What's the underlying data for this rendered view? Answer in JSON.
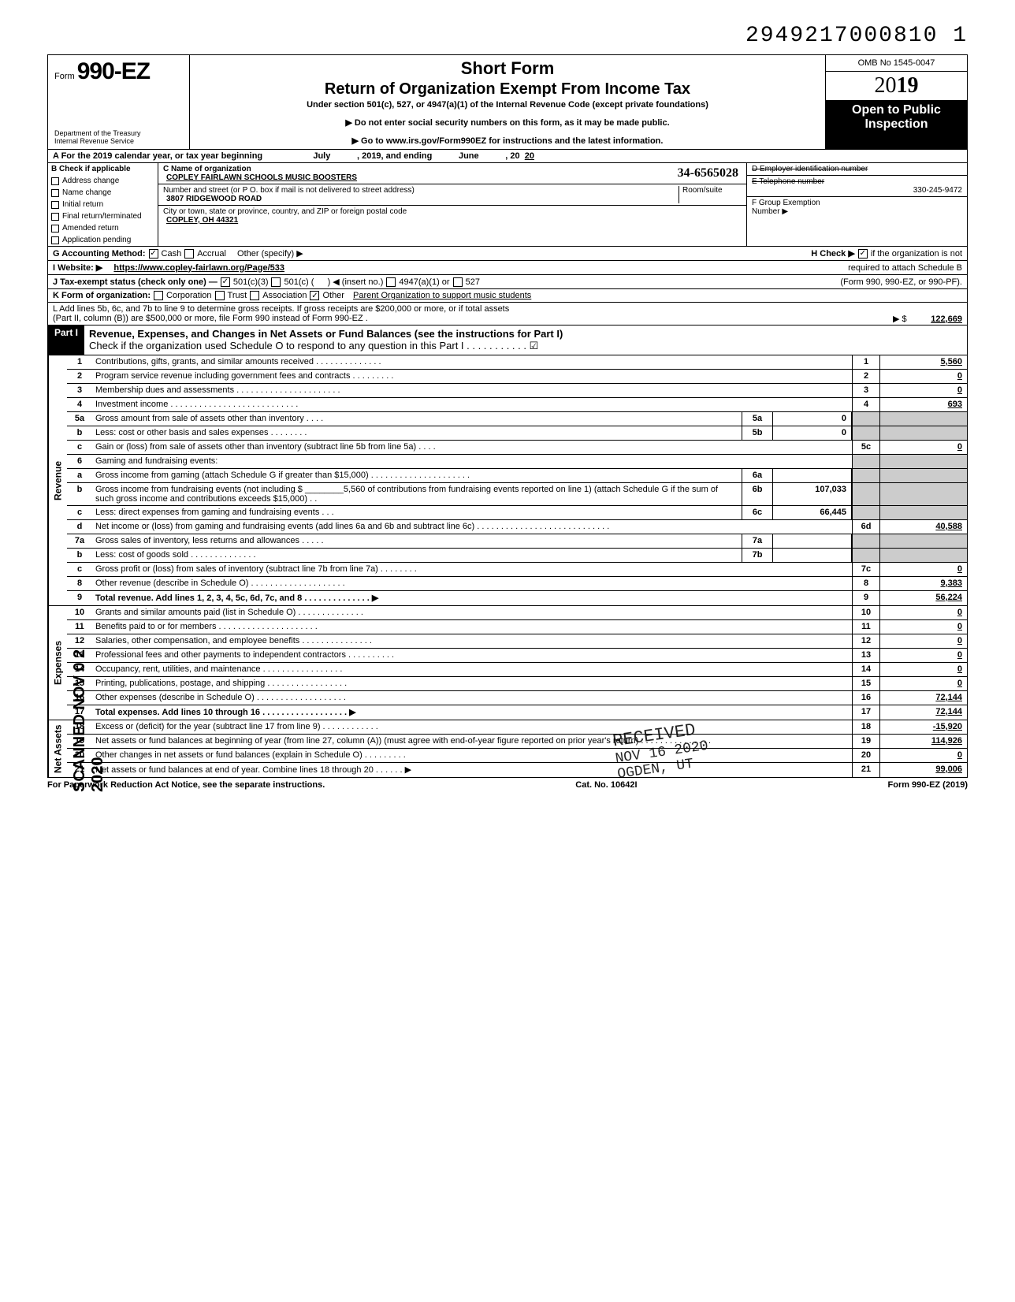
{
  "dln": "2949217000810 1",
  "header": {
    "form_label": "Form",
    "form_number": "990-EZ",
    "dept": "Department of the Treasury\nInternal Revenue Service",
    "short": "Short Form",
    "title": "Return of Organization Exempt From Income Tax",
    "subtitle": "Under section 501(c), 527, or 4947(a)(1) of the Internal Revenue Code (except private foundations)",
    "inst1": "▶ Do not enter social security numbers on this form, as it may be made public.",
    "inst2": "▶ Go to www.irs.gov/Form990EZ for instructions and the latest information.",
    "omb": "OMB No 1545-0047",
    "year_prefix": "20",
    "year_bold": "19",
    "open1": "Open to Public",
    "open2": "Inspection"
  },
  "lineA": {
    "prefix": "A For the 2019 calendar year, or tax year beginning",
    "begin": "July",
    "mid": ", 2019, and ending",
    "end": "June",
    "suffix": ", 20",
    "yy": "20"
  },
  "colB": {
    "hdr": "B Check if applicable",
    "items": [
      "Address change",
      "Name change",
      "Initial return",
      "Final return/terminated",
      "Amended return",
      "Application pending"
    ]
  },
  "orgC": {
    "c_lbl": "C Name of organization",
    "name": "COPLEY FAIRLAWN SCHOOLS MUSIC BOOSTERS",
    "addr_lbl": "Number and street (or P O. box if mail is not delivered to street address)",
    "room_lbl": "Room/suite",
    "street": "3807 RIDGEWOOD ROAD",
    "city_lbl": "City or town, state or province, country, and ZIP or foreign postal code",
    "city": "COPLEY, OH 44321"
  },
  "colD": {
    "d_lbl": "D Employer identification number",
    "ein": "34-6565028",
    "e_lbl": "E Telephone number",
    "phone": "330-245-9472",
    "f_lbl": "F Group Exemption",
    "f_lbl2": "Number ▶"
  },
  "lineG": {
    "lbl": "G Accounting Method:",
    "cash": "Cash",
    "accrual": "Accrual",
    "other": "Other (specify) ▶"
  },
  "lineH": {
    "lbl": "H Check ▶",
    "txt": "if the organization is not",
    "txt2": "required to attach Schedule B",
    "txt3": "(Form 990, 990-EZ, or 990-PF)."
  },
  "lineI": {
    "lbl": "I Website: ▶",
    "val": "https://www.copley-fairlawn.org/Page/533"
  },
  "lineJ": {
    "lbl": "J Tax-exempt status (check only one) —",
    "a": "501(c)(3)",
    "b": "501(c) (",
    "c": ") ◀ (insert no.)",
    "d": "4947(a)(1) or",
    "e": "527"
  },
  "lineK": {
    "lbl": "K Form of organization:",
    "a": "Corporation",
    "b": "Trust",
    "c": "Association",
    "d": "Other",
    "val": "Parent Organization to support music students"
  },
  "lineL": {
    "txt": "L Add lines 5b, 6c, and 7b to line 9 to determine gross receipts. If gross receipts are $200,000 or more, or if total assets",
    "txt2": "(Part II, column (B)) are $500,000 or more, file Form 990 instead of Form 990-EZ .",
    "arrow": "▶ $",
    "val": "122,669"
  },
  "part1": {
    "hdr": "Part I",
    "title": "Revenue, Expenses, and Changes in Net Assets or Fund Balances (see the instructions for Part I)",
    "sub": "Check if the organization used Schedule O to respond to any question in this Part I . . . . . . . . . . . ☑"
  },
  "sections": {
    "rev": "Revenue",
    "exp": "Expenses",
    "na": "Net Assets"
  },
  "rows": [
    {
      "n": "1",
      "d": "Contributions, gifts, grants, and similar amounts received . . . . . . . . . . . . . .",
      "r": "1",
      "v": "5,560"
    },
    {
      "n": "2",
      "d": "Program service revenue including government fees and contracts  . . . . . . . . .",
      "r": "2",
      "v": "0"
    },
    {
      "n": "3",
      "d": "Membership dues and assessments . . . . . . . . . . . . . . . . . . . . . .",
      "r": "3",
      "v": "0"
    },
    {
      "n": "4",
      "d": "Investment income  . . . . . . . . . . . . . . . . . . . . . . . . . . .",
      "r": "4",
      "v": "693"
    },
    {
      "n": "5a",
      "d": "Gross amount from sale of assets other than inventory  . . . .",
      "m": "5a",
      "mv": "0",
      "gray": true
    },
    {
      "n": "b",
      "d": "Less: cost or other basis and sales expenses . . . . . . . .",
      "m": "5b",
      "mv": "0",
      "gray": true
    },
    {
      "n": "c",
      "d": "Gain or (loss) from sale of assets other than inventory (subtract line 5b from line 5a) . . . .",
      "r": "5c",
      "v": "0"
    },
    {
      "n": "6",
      "d": "Gaming and fundraising events:",
      "gray": true
    },
    {
      "n": "a",
      "d": "Gross income from gaming (attach Schedule G if greater than $15,000) . . . . . . . . . . . . . . . . . . . . .",
      "m": "6a",
      "mv": "",
      "gray": true
    },
    {
      "n": "b",
      "d": "Gross income from fundraising events (not including $ ________5,560 of contributions from fundraising events reported on line 1) (attach Schedule G if the sum of such gross income and contributions exceeds $15,000) . .",
      "m": "6b",
      "mv": "107,033",
      "gray": true
    },
    {
      "n": "c",
      "d": "Less: direct expenses from gaming and fundraising events  . . .",
      "m": "6c",
      "mv": "66,445",
      "gray": true
    },
    {
      "n": "d",
      "d": "Net income or (loss) from gaming and fundraising events (add lines 6a and 6b and subtract line 6c)  . . . . . . . . . . . . . . . . . . . . . . . . . . . .",
      "r": "6d",
      "v": "40,588"
    },
    {
      "n": "7a",
      "d": "Gross sales of inventory, less returns and allowances . . . . .",
      "m": "7a",
      "mv": "",
      "gray": true
    },
    {
      "n": "b",
      "d": "Less: cost of goods sold  . . . . . . . . . . . . . .",
      "m": "7b",
      "mv": "",
      "gray": true
    },
    {
      "n": "c",
      "d": "Gross profit or (loss) from sales of inventory (subtract line 7b from line 7a) . . . . . . . .",
      "r": "7c",
      "v": "0"
    },
    {
      "n": "8",
      "d": "Other revenue (describe in Schedule O) . . . . . . . . . . . . . . . . . . . .",
      "r": "8",
      "v": "9,383"
    },
    {
      "n": "9",
      "d": "Total revenue. Add lines 1, 2, 3, 4, 5c, 6d, 7c, and 8 . . . . . . . . . . . . . . ▶",
      "r": "9",
      "v": "56,224",
      "bold": true
    }
  ],
  "exp_rows": [
    {
      "n": "10",
      "d": "Grants and similar amounts paid (list in Schedule O)  . . . . . . . . . . . . . .",
      "r": "10",
      "v": "0"
    },
    {
      "n": "11",
      "d": "Benefits paid to or for members  . . . . . . . . . . . . . . . . . . . . .",
      "r": "11",
      "v": "0"
    },
    {
      "n": "12",
      "d": "Salaries, other compensation, and employee benefits . . . . . . . . . . . . . . .",
      "r": "12",
      "v": "0"
    },
    {
      "n": "13",
      "d": "Professional fees and other payments to independent contractors . . . . . . . . . .",
      "r": "13",
      "v": "0"
    },
    {
      "n": "14",
      "d": "Occupancy, rent, utilities, and maintenance  . . . . . . . . . . . . . . . . .",
      "r": "14",
      "v": "0"
    },
    {
      "n": "15",
      "d": "Printing, publications, postage, and shipping . . . . . . . . . . . . . . . . .",
      "r": "15",
      "v": "0"
    },
    {
      "n": "16",
      "d": "Other expenses (describe in Schedule O) . . . . . . . . . . . . . . . . . . .",
      "r": "16",
      "v": "72,144"
    },
    {
      "n": "17",
      "d": "Total expenses. Add lines 10 through 16 . . . . . . . . . . . . . . . . . . ▶",
      "r": "17",
      "v": "72,144",
      "bold": true
    }
  ],
  "na_rows": [
    {
      "n": "18",
      "d": "Excess or (deficit) for the year (subtract line 17 from line 9)  . . . . . . . . . . . .",
      "r": "18",
      "v": "-15,920"
    },
    {
      "n": "19",
      "d": "Net assets or fund balances at beginning of year (from line 27, column (A)) (must agree with end-of-year figure reported on prior year's return)  . . . . . . . . . . . . . . .",
      "r": "19",
      "v": "114,926"
    },
    {
      "n": "20",
      "d": "Other changes in net assets or fund balances (explain in Schedule O) . . . . . . . . .",
      "r": "20",
      "v": "0"
    },
    {
      "n": "21",
      "d": "Net assets or fund balances at end of year. Combine lines 18 through 20  . . . . . . ▶",
      "r": "21",
      "v": "99,006"
    }
  ],
  "footer": {
    "l": "For Paperwork Reduction Act Notice, see the separate instructions.",
    "c": "Cat. No. 10642I",
    "r": "Form 990-EZ (2019)"
  },
  "stamps": {
    "scanned": "SCANNED NOV 0 2 2020",
    "received": "RECEIVED",
    "date": "NOV 16 2020",
    "loc": "OGDEN, UT"
  },
  "colors": {
    "black": "#000000",
    "gray": "#cccccc",
    "white": "#ffffff"
  }
}
